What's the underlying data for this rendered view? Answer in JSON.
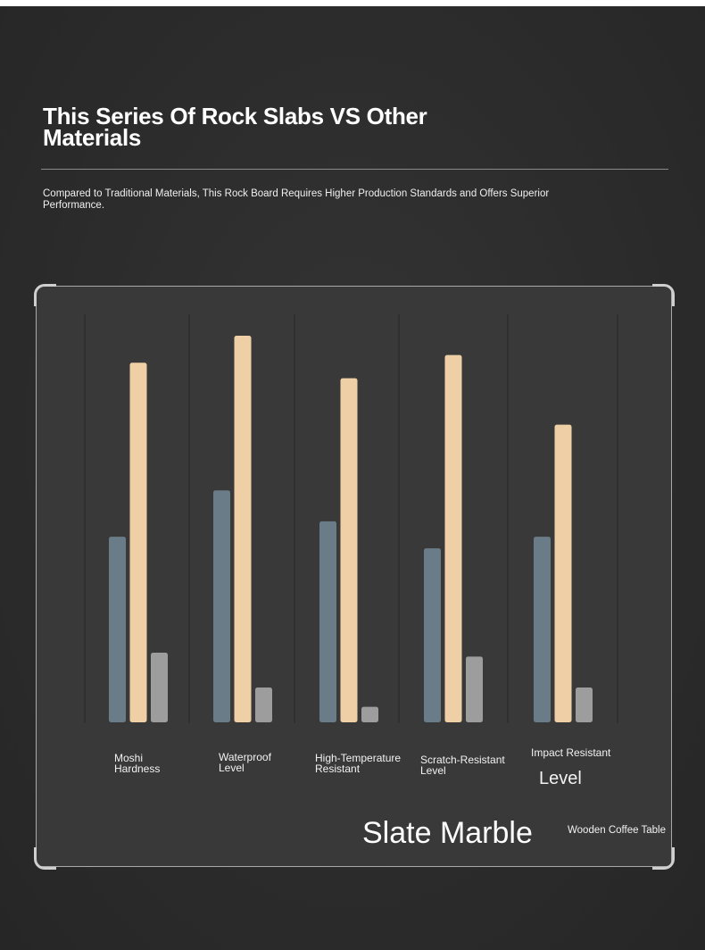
{
  "title": "This Series Of Rock Slabs VS Other Materials",
  "subtitle": "Compared to Traditional Materials, This Rock Board Requires Higher Production Standards and Offers Superior Performance.",
  "categories": [
    "Moshi Hardness",
    "Waterproof Level",
    "High-Temperature Resistant",
    "Scratch-Resistant Level",
    "Impact Resistant"
  ],
  "level_text": "Level",
  "legend": {
    "large": "Slate Marble",
    "small": "Wooden Coffee Table"
  },
  "colors": {
    "slate": "#6a7c87",
    "rock": "#efcfa6",
    "wood": "#9d9d9d",
    "gridline": "#2d2d2d"
  },
  "chart_data": {
    "type": "bar",
    "categories": [
      "Moshi Hardness",
      "Waterproof Level",
      "High-Temperature Resistant",
      "Scratch-Resistant Level",
      "Impact Resistant Level"
    ],
    "series": [
      {
        "values": [
          48,
          60,
          52,
          45,
          48
        ],
        "color": "#6a7c87"
      },
      {
        "values": [
          93,
          100,
          89,
          95,
          77
        ],
        "color": "#efcfa6"
      },
      {
        "values": [
          18,
          9,
          4,
          17,
          9
        ],
        "color": "#9d9d9d"
      }
    ],
    "ylim": [
      0,
      100
    ],
    "grid": "vertical separators",
    "legend": [
      "Slate Marble",
      "Wooden Coffee Table"
    ]
  }
}
